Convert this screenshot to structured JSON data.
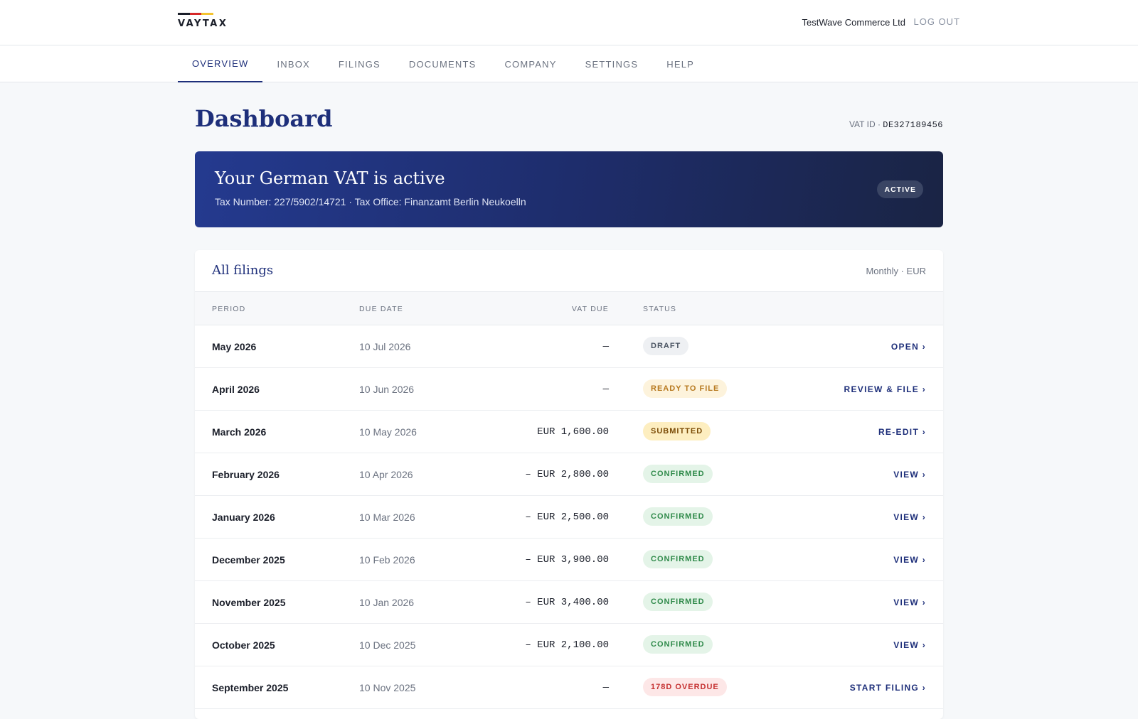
{
  "brand": {
    "name": "VAYTAX",
    "flag_colors": [
      "#1b1f2a",
      "#d62828",
      "#f4c430"
    ]
  },
  "header": {
    "company": "TestWave Commerce Ltd",
    "logout_label": "LOG OUT"
  },
  "nav": {
    "tabs": [
      {
        "label": "OVERVIEW",
        "active": true
      },
      {
        "label": "INBOX",
        "active": false
      },
      {
        "label": "FILINGS",
        "active": false
      },
      {
        "label": "DOCUMENTS",
        "active": false
      },
      {
        "label": "COMPANY",
        "active": false
      },
      {
        "label": "SETTINGS",
        "active": false
      },
      {
        "label": "HELP",
        "active": false
      }
    ]
  },
  "page": {
    "title": "Dashboard",
    "vat_id_label": "VAT ID · ",
    "vat_id_value": "DE327189456"
  },
  "banner": {
    "title": "Your German VAT is active",
    "subtitle": "Tax Number: 227/5902/14721 · Tax Office: Finanzamt Berlin Neukoelln",
    "badge": "ACTIVE"
  },
  "filings": {
    "title": "All filings",
    "meta": "Monthly · EUR",
    "columns": {
      "period": "PERIOD",
      "due_date": "DUE DATE",
      "vat_due": "VAT DUE",
      "status": "STATUS"
    },
    "rows": [
      {
        "period": "May 2026",
        "due_date": "10 Jul 2026",
        "vat_due": "—",
        "status": "DRAFT",
        "status_kind": "draft",
        "action": "OPEN ›"
      },
      {
        "period": "April 2026",
        "due_date": "10 Jun 2026",
        "vat_due": "—",
        "status": "READY TO FILE",
        "status_kind": "ready",
        "action": "REVIEW & FILE ›"
      },
      {
        "period": "March 2026",
        "due_date": "10 May 2026",
        "vat_due": "EUR 1,600.00",
        "status": "SUBMITTED",
        "status_kind": "submitted",
        "action": "RE-EDIT ›"
      },
      {
        "period": "February 2026",
        "due_date": "10 Apr 2026",
        "vat_due": "– EUR 2,800.00",
        "status": "CONFIRMED",
        "status_kind": "confirmed",
        "action": "VIEW ›"
      },
      {
        "period": "January 2026",
        "due_date": "10 Mar 2026",
        "vat_due": "– EUR 2,500.00",
        "status": "CONFIRMED",
        "status_kind": "confirmed",
        "action": "VIEW ›"
      },
      {
        "period": "December 2025",
        "due_date": "10 Feb 2026",
        "vat_due": "– EUR 3,900.00",
        "status": "CONFIRMED",
        "status_kind": "confirmed",
        "action": "VIEW ›"
      },
      {
        "period": "November 2025",
        "due_date": "10 Jan 2026",
        "vat_due": "– EUR 3,400.00",
        "status": "CONFIRMED",
        "status_kind": "confirmed",
        "action": "VIEW ›"
      },
      {
        "period": "October 2025",
        "due_date": "10 Dec 2025",
        "vat_due": "– EUR 2,100.00",
        "status": "CONFIRMED",
        "status_kind": "confirmed",
        "action": "VIEW ›"
      },
      {
        "period": "September 2025",
        "due_date": "10 Nov 2025",
        "vat_due": "—",
        "status": "178D OVERDUE",
        "status_kind": "overdue",
        "action": "START FILING ›"
      }
    ]
  }
}
